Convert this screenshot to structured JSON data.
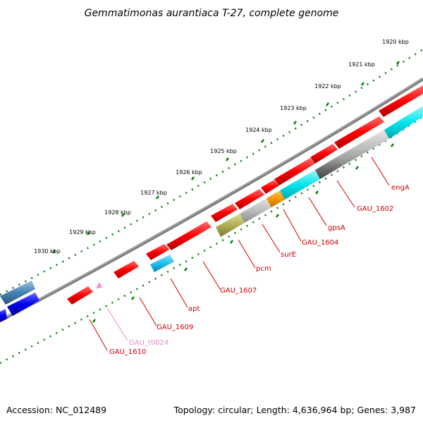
{
  "title": "Gemmatimonas aurantiaca T-27, complete genome",
  "footer": {
    "accession": "Accession: NC_012489",
    "summary": "Topology: circular; Length: 4,636,964 bp; Genes: 3,987"
  },
  "colors": {
    "red": "#ff0000",
    "cyan": "#00e5ee",
    "blue": "#0000ee",
    "steel": "#4682b4",
    "gray": "#bebebe",
    "darkgray": "#707070",
    "orange": "#ff9900",
    "olive": "#b0ae55",
    "pink": "#ff88cc",
    "label_red": "#cc0000",
    "label_pink": "#ee88cc",
    "tick_green": "#008000",
    "backbone": "#808080"
  },
  "ticks": [
    "1920 kbp",
    "1921 kbp",
    "1922 kbp",
    "1923 kbp",
    "1924 kbp",
    "1925 kbp",
    "1926 kbp",
    "1927 kbp",
    "1928 kbp",
    "1929 kbp",
    "1930 kbp"
  ],
  "gene_labels": [
    "engA",
    "GAU_1602",
    "gpsA",
    "GAU_1604",
    "surE",
    "pcm",
    "GAU_1607",
    "apt",
    "GAU_1609",
    "GAU_t0024",
    "GAU_1610"
  ]
}
